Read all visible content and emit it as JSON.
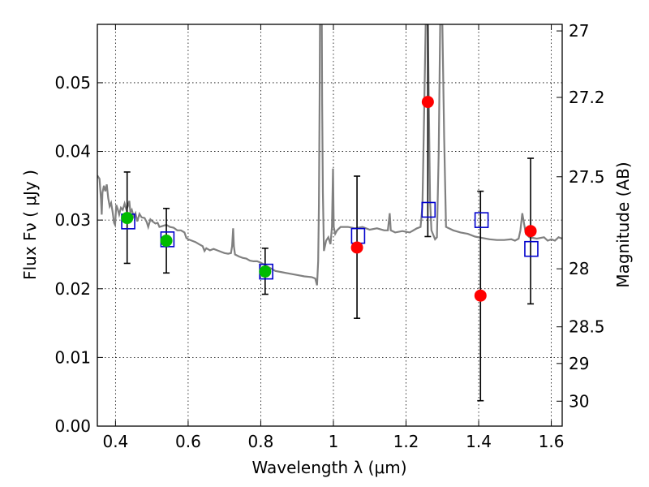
{
  "chart_data": {
    "type": "scatter",
    "title": "",
    "xlabel": "Wavelength  λ (μm)",
    "ylabel": "Flux  Fν  ( μJy )",
    "ylabel_right": "Magnitude (AB)",
    "xlim": [
      0.35,
      1.63
    ],
    "ylim": [
      0.0,
      0.0585
    ],
    "grid": true,
    "grid_style": "dotted",
    "x_ticks": [
      {
        "value": 0.4,
        "label": "0.4"
      },
      {
        "value": 0.6,
        "label": "0.6"
      },
      {
        "value": 0.8,
        "label": "0.8"
      },
      {
        "value": 1.0,
        "label": "1"
      },
      {
        "value": 1.2,
        "label": "1.2"
      },
      {
        "value": 1.4,
        "label": "1.4"
      },
      {
        "value": 1.6,
        "label": "1.6"
      }
    ],
    "y_ticks": [
      {
        "value": 0.0,
        "label": "0.00"
      },
      {
        "value": 0.01,
        "label": "0.01"
      },
      {
        "value": 0.02,
        "label": "0.02"
      },
      {
        "value": 0.03,
        "label": "0.03"
      },
      {
        "value": 0.04,
        "label": "0.04"
      },
      {
        "value": 0.05,
        "label": "0.05"
      }
    ],
    "right_ticks": [
      {
        "mag": 27.0,
        "label": "27"
      },
      {
        "mag": 27.2,
        "label": "27.2"
      },
      {
        "mag": 27.5,
        "label": "27.5"
      },
      {
        "mag": 28.0,
        "label": "28"
      },
      {
        "mag": 28.5,
        "label": "28.5"
      },
      {
        "mag": 29.0,
        "label": "29"
      },
      {
        "mag": 30.0,
        "label": "30"
      }
    ],
    "series": [
      {
        "kind": "line",
        "color": "#808080",
        "points": [
          [
            0.35,
            0.0365
          ],
          [
            0.356,
            0.036
          ],
          [
            0.36,
            0.033
          ],
          [
            0.362,
            0.0308
          ],
          [
            0.364,
            0.034
          ],
          [
            0.368,
            0.035
          ],
          [
            0.372,
            0.0342
          ],
          [
            0.376,
            0.0352
          ],
          [
            0.38,
            0.0332
          ],
          [
            0.384,
            0.032
          ],
          [
            0.388,
            0.0325
          ],
          [
            0.392,
            0.0312
          ],
          [
            0.396,
            0.0296
          ],
          [
            0.399,
            0.0293
          ],
          [
            0.402,
            0.0322
          ],
          [
            0.406,
            0.0316
          ],
          [
            0.41,
            0.0308
          ],
          [
            0.415,
            0.0318
          ],
          [
            0.42,
            0.0315
          ],
          [
            0.425,
            0.0324
          ],
          [
            0.43,
            0.0315
          ],
          [
            0.434,
            0.032
          ],
          [
            0.438,
            0.0328
          ],
          [
            0.441,
            0.0311
          ],
          [
            0.445,
            0.0315
          ],
          [
            0.45,
            0.0305
          ],
          [
            0.455,
            0.031
          ],
          [
            0.46,
            0.0298
          ],
          [
            0.466,
            0.0309
          ],
          [
            0.472,
            0.0304
          ],
          [
            0.48,
            0.0303
          ],
          [
            0.486,
            0.0297
          ],
          [
            0.49,
            0.029
          ],
          [
            0.496,
            0.0301
          ],
          [
            0.502,
            0.0298
          ],
          [
            0.51,
            0.0295
          ],
          [
            0.516,
            0.0296
          ],
          [
            0.521,
            0.029
          ],
          [
            0.527,
            0.0291
          ],
          [
            0.533,
            0.0292
          ],
          [
            0.54,
            0.0293
          ],
          [
            0.55,
            0.029
          ],
          [
            0.56,
            0.0289
          ],
          [
            0.57,
            0.0285
          ],
          [
            0.58,
            0.0285
          ],
          [
            0.59,
            0.0282
          ],
          [
            0.595,
            0.0274
          ],
          [
            0.6,
            0.0272
          ],
          [
            0.61,
            0.027
          ],
          [
            0.62,
            0.0268
          ],
          [
            0.63,
            0.0265
          ],
          [
            0.64,
            0.0262
          ],
          [
            0.645,
            0.0255
          ],
          [
            0.65,
            0.0259
          ],
          [
            0.66,
            0.0256
          ],
          [
            0.67,
            0.0258
          ],
          [
            0.68,
            0.0256
          ],
          [
            0.69,
            0.0254
          ],
          [
            0.7,
            0.0252
          ],
          [
            0.71,
            0.0251
          ],
          [
            0.718,
            0.0252
          ],
          [
            0.721,
            0.0262
          ],
          [
            0.724,
            0.0288
          ],
          [
            0.726,
            0.0262
          ],
          [
            0.729,
            0.025
          ],
          [
            0.74,
            0.0247
          ],
          [
            0.75,
            0.0245
          ],
          [
            0.76,
            0.0244
          ],
          [
            0.77,
            0.0241
          ],
          [
            0.78,
            0.024
          ],
          [
            0.79,
            0.024
          ],
          [
            0.8,
            0.0238
          ],
          [
            0.82,
            0.0232
          ],
          [
            0.84,
            0.0226
          ],
          [
            0.86,
            0.0224
          ],
          [
            0.88,
            0.0222
          ],
          [
            0.9,
            0.022
          ],
          [
            0.92,
            0.0218
          ],
          [
            0.94,
            0.0217
          ],
          [
            0.95,
            0.0215
          ],
          [
            0.955,
            0.0205
          ],
          [
            0.958,
            0.024
          ],
          [
            0.96,
            0.032
          ],
          [
            0.962,
            0.048
          ],
          [
            0.963,
            0.0585
          ],
          [
            0.968,
            0.0585
          ],
          [
            0.969,
            0.047
          ],
          [
            0.971,
            0.034
          ],
          [
            0.974,
            0.0255
          ],
          [
            0.98,
            0.027
          ],
          [
            0.986,
            0.0275
          ],
          [
            0.992,
            0.0265
          ],
          [
            0.996,
            0.029
          ],
          [
            0.999,
            0.0375
          ],
          [
            1.001,
            0.029
          ],
          [
            1.005,
            0.028
          ],
          [
            1.01,
            0.0285
          ],
          [
            1.02,
            0.029
          ],
          [
            1.04,
            0.029
          ],
          [
            1.06,
            0.0288
          ],
          [
            1.08,
            0.029
          ],
          [
            1.1,
            0.0286
          ],
          [
            1.12,
            0.0288
          ],
          [
            1.14,
            0.0285
          ],
          [
            1.15,
            0.0285
          ],
          [
            1.155,
            0.031
          ],
          [
            1.158,
            0.0285
          ],
          [
            1.17,
            0.0282
          ],
          [
            1.19,
            0.0284
          ],
          [
            1.21,
            0.0282
          ],
          [
            1.23,
            0.0288
          ],
          [
            1.24,
            0.029
          ],
          [
            1.245,
            0.032
          ],
          [
            1.25,
            0.046
          ],
          [
            1.254,
            0.0585
          ],
          [
            1.26,
            0.0585
          ],
          [
            1.263,
            0.046
          ],
          [
            1.266,
            0.033
          ],
          [
            1.27,
            0.0285
          ],
          [
            1.28,
            0.0272
          ],
          [
            1.285,
            0.0275
          ],
          [
            1.29,
            0.04
          ],
          [
            1.294,
            0.0585
          ],
          [
            1.3,
            0.0585
          ],
          [
            1.305,
            0.042
          ],
          [
            1.31,
            0.029
          ],
          [
            1.33,
            0.0285
          ],
          [
            1.35,
            0.0282
          ],
          [
            1.37,
            0.028
          ],
          [
            1.39,
            0.0276
          ],
          [
            1.41,
            0.0274
          ],
          [
            1.43,
            0.0272
          ],
          [
            1.45,
            0.0271
          ],
          [
            1.47,
            0.0271
          ],
          [
            1.49,
            0.0272
          ],
          [
            1.5,
            0.027
          ],
          [
            1.51,
            0.0273
          ],
          [
            1.515,
            0.0285
          ],
          [
            1.52,
            0.031
          ],
          [
            1.525,
            0.0295
          ],
          [
            1.53,
            0.028
          ],
          [
            1.54,
            0.0275
          ],
          [
            1.56,
            0.0273
          ],
          [
            1.58,
            0.0275
          ],
          [
            1.59,
            0.027
          ],
          [
            1.6,
            0.0272
          ],
          [
            1.61,
            0.027
          ],
          [
            1.62,
            0.0275
          ],
          [
            1.63,
            0.0273
          ]
        ]
      },
      {
        "kind": "squares",
        "color": "#0000cc",
        "points": [
          [
            0.435,
            0.0298
          ],
          [
            0.543,
            0.0272
          ],
          [
            0.815,
            0.0225
          ],
          [
            1.068,
            0.0277
          ],
          [
            1.262,
            0.0315
          ],
          [
            1.408,
            0.03
          ],
          [
            1.545,
            0.0258
          ]
        ]
      },
      {
        "kind": "circles",
        "color": "#00bb00",
        "points": [
          {
            "x": 0.432,
            "y": 0.0303,
            "yerr_low": 0.0237,
            "yerr_high": 0.037
          },
          {
            "x": 0.54,
            "y": 0.027,
            "yerr_low": 0.0223,
            "yerr_high": 0.0317
          },
          {
            "x": 0.812,
            "y": 0.0225,
            "yerr_low": 0.0192,
            "yerr_high": 0.0259
          }
        ]
      },
      {
        "kind": "circles",
        "color": "#ff0000",
        "points": [
          {
            "x": 1.065,
            "y": 0.026,
            "yerr_low": 0.0157,
            "yerr_high": 0.0364
          },
          {
            "x": 1.26,
            "y": 0.0472,
            "yerr_low": 0.0276,
            "yerr_high": 0.0585
          },
          {
            "x": 1.405,
            "y": 0.019,
            "yerr_low": 0.0037,
            "yerr_high": 0.0342
          },
          {
            "x": 1.543,
            "y": 0.0284,
            "yerr_low": 0.0178,
            "yerr_high": 0.039
          }
        ]
      }
    ]
  }
}
